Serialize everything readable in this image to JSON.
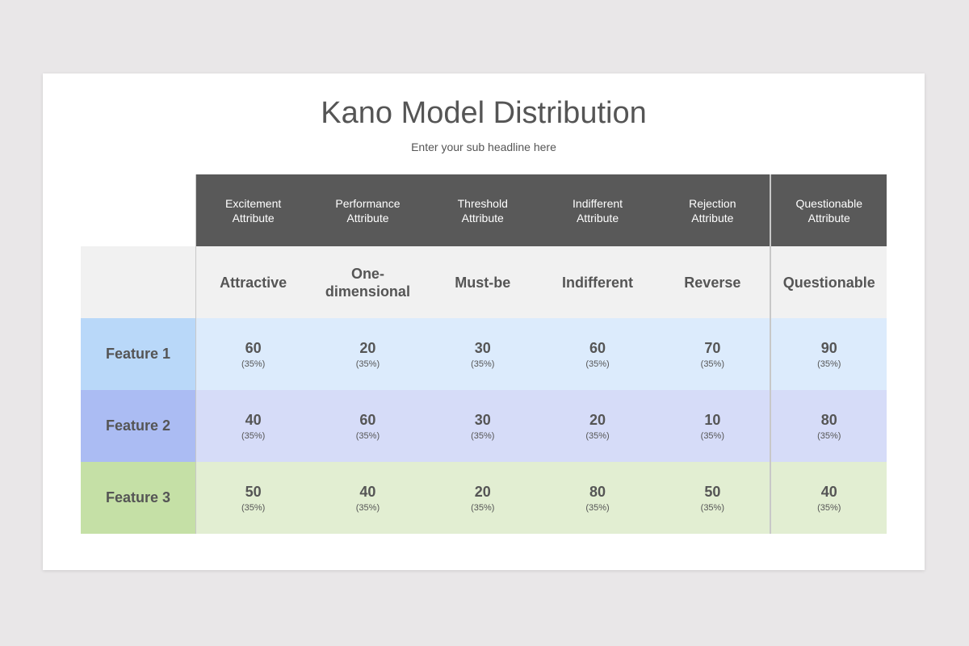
{
  "header": {
    "title": "Kano Model Distribution",
    "subtitle": "Enter your sub headline here"
  },
  "table": {
    "attributes": [
      "Excitement Attribute",
      "Performance Attribute",
      "Threshold Attribute",
      "Indifferent Attribute",
      "Rejection Attribute",
      "Questionable Attribute"
    ],
    "categories": [
      "Attractive",
      "One-dimensional",
      "Must-be",
      "Indifferent",
      "Reverse",
      "Questionable"
    ],
    "rows": [
      {
        "label": "Feature 1",
        "cells": [
          {
            "value": 60,
            "share": "(35%)"
          },
          {
            "value": 20,
            "share": "(35%)"
          },
          {
            "value": 30,
            "share": "(35%)"
          },
          {
            "value": 60,
            "share": "(35%)"
          },
          {
            "value": 70,
            "share": "(35%)"
          },
          {
            "value": 90,
            "share": "(35%)"
          }
        ]
      },
      {
        "label": "Feature 2",
        "cells": [
          {
            "value": 40,
            "share": "(35%)"
          },
          {
            "value": 60,
            "share": "(35%)"
          },
          {
            "value": 30,
            "share": "(35%)"
          },
          {
            "value": 20,
            "share": "(35%)"
          },
          {
            "value": 10,
            "share": "(35%)"
          },
          {
            "value": 80,
            "share": "(35%)"
          }
        ]
      },
      {
        "label": "Feature 3",
        "cells": [
          {
            "value": 50,
            "share": "(35%)"
          },
          {
            "value": 40,
            "share": "(35%)"
          },
          {
            "value": 20,
            "share": "(35%)"
          },
          {
            "value": 80,
            "share": "(35%)"
          },
          {
            "value": 50,
            "share": "(35%)"
          },
          {
            "value": 40,
            "share": "(35%)"
          }
        ]
      }
    ]
  }
}
